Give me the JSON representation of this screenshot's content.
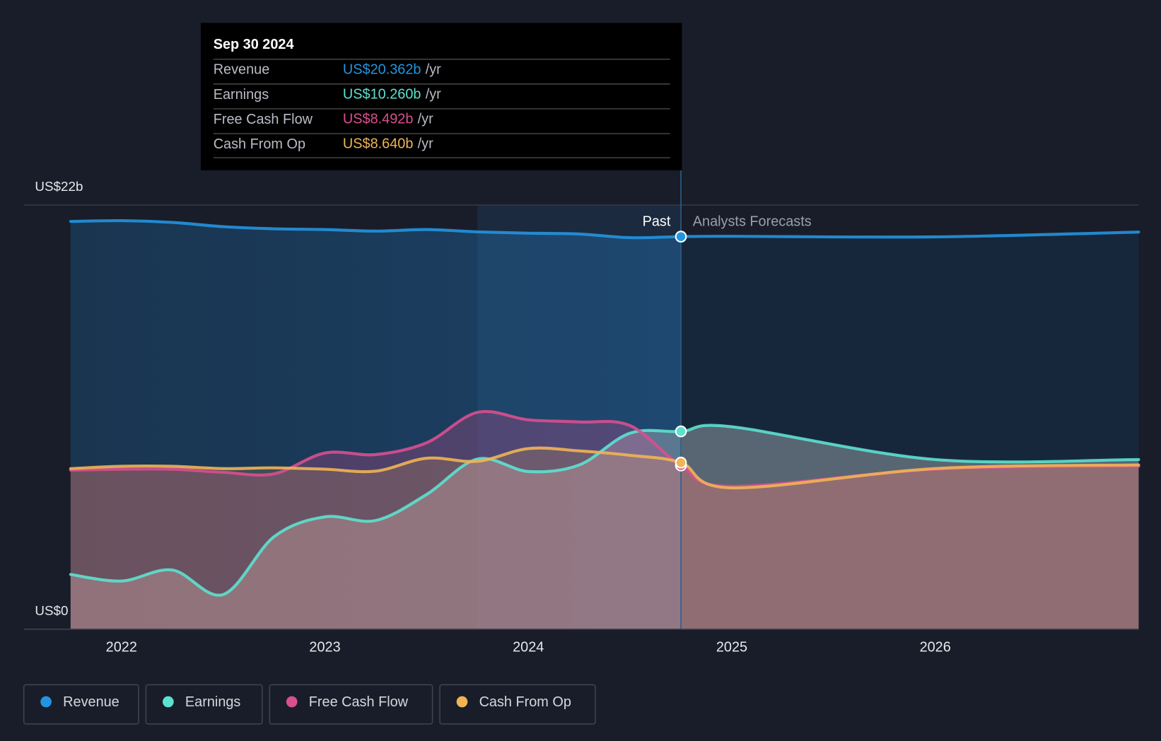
{
  "chart_data": {
    "type": "line",
    "x": [
      2021.75,
      2022.0,
      2022.25,
      2022.5,
      2022.75,
      2023.0,
      2023.25,
      2023.5,
      2023.75,
      2024.0,
      2024.25,
      2024.5,
      2024.75,
      2025.0,
      2026.0,
      2027.0
    ],
    "series": [
      {
        "name": "Revenue",
        "color": "#2394df",
        "values": [
          21.15,
          21.19,
          21.1,
          20.88,
          20.77,
          20.73,
          20.65,
          20.73,
          20.61,
          20.54,
          20.5,
          20.31,
          20.362,
          20.38,
          20.35,
          20.6
        ]
      },
      {
        "name": "Earnings",
        "color": "#5ce1d0",
        "values": [
          2.84,
          2.5,
          3.07,
          1.8,
          4.8,
          5.83,
          5.64,
          6.99,
          8.83,
          8.18,
          8.52,
          10.17,
          10.26,
          10.5,
          8.8,
          8.8
        ]
      },
      {
        "name": "Free Cash Flow",
        "color": "#d94f8f",
        "values": [
          8.25,
          8.3,
          8.3,
          8.14,
          8.06,
          9.14,
          9.06,
          9.67,
          11.25,
          10.86,
          10.75,
          10.56,
          8.492,
          7.41,
          8.3,
          8.45
        ]
      },
      {
        "name": "Cash From Op",
        "color": "#f0b455",
        "values": [
          8.33,
          8.45,
          8.45,
          8.33,
          8.37,
          8.3,
          8.2,
          8.87,
          8.71,
          9.37,
          9.25,
          9.02,
          8.64,
          7.33,
          8.33,
          8.52
        ]
      }
    ],
    "xlim": [
      2021.52,
      2027.0
    ],
    "xticks": [
      2022,
      2023,
      2024,
      2025,
      2026
    ],
    "ylim": [
      0,
      22
    ],
    "yticks": [
      {
        "value": 0,
        "label": "US$0"
      },
      {
        "value": 22,
        "label": "US$22b"
      }
    ],
    "forecast_start": 2024.75,
    "past_label": "Past",
    "forecast_label": "Analysts Forecasts",
    "tooltip": {
      "date": "Sep 30 2024",
      "rows": [
        {
          "label": "Revenue",
          "value": "US$20.362b",
          "unit": "/yr"
        },
        {
          "label": "Earnings",
          "value": "US$10.260b",
          "unit": "/yr"
        },
        {
          "label": "Free Cash Flow",
          "value": "US$8.492b",
          "unit": "/yr"
        },
        {
          "label": "Cash From Op",
          "value": "US$8.640b",
          "unit": "/yr"
        }
      ]
    }
  }
}
